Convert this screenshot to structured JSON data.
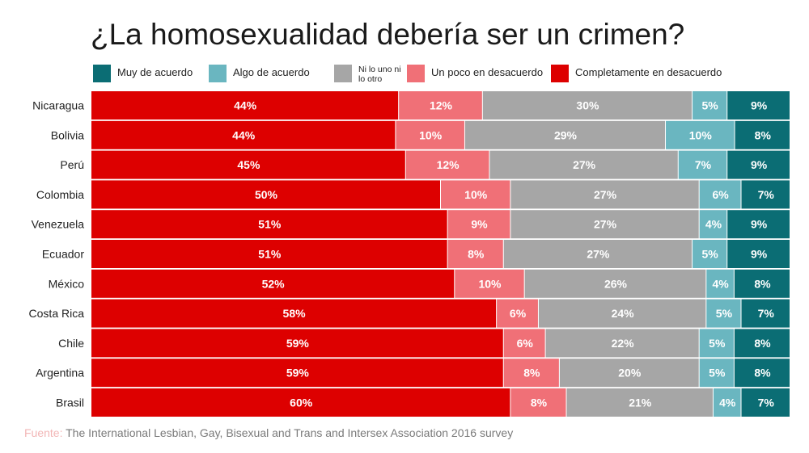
{
  "title": "¿La homosexualidad debería ser un crimen?",
  "source": {
    "label": "Fuente:",
    "text": " The International Lesbian, Gay, Bisexual and Trans and Intersex Association 2016 survey"
  },
  "colors": {
    "completamente": "#dd0000",
    "un_poco": "#f07077",
    "neutral": "#a6a6a6",
    "algo": "#6ab6c0",
    "muy": "#0b6d74"
  },
  "legend": [
    {
      "label": "Muy de acuerdo",
      "color": "#0b6d74"
    },
    {
      "label": "Algo de acuerdo",
      "color": "#6ab6c0"
    },
    {
      "label": "Ni lo uno ni lo otro",
      "color": "#a6a6a6"
    },
    {
      "label": "Un poco en desacuerdo",
      "color": "#f07077"
    },
    {
      "label": "Completamente en desacuerdo",
      "color": "#dd0000"
    }
  ],
  "chart_data": {
    "type": "bar",
    "orientation": "horizontal",
    "stacked": true,
    "title": "¿La homosexualidad debería ser un crimen?",
    "categories": [
      "Nicaragua",
      "Bolivia",
      "Perú",
      "Colombia",
      "Venezuela",
      "Ecuador",
      "México",
      "Costa Rica",
      "Chile",
      "Argentina",
      "Brasil"
    ],
    "series": [
      {
        "name": "Completamente en desacuerdo",
        "color": "#dd0000",
        "values": [
          44,
          44,
          45,
          50,
          51,
          51,
          52,
          58,
          59,
          59,
          60
        ]
      },
      {
        "name": "Un poco en desacuerdo",
        "color": "#f07077",
        "values": [
          12,
          10,
          12,
          10,
          9,
          8,
          10,
          6,
          6,
          8,
          8
        ]
      },
      {
        "name": "Ni lo uno ni lo otro",
        "color": "#a6a6a6",
        "values": [
          30,
          29,
          27,
          27,
          27,
          27,
          26,
          24,
          22,
          20,
          21
        ]
      },
      {
        "name": "Algo de acuerdo",
        "color": "#6ab6c0",
        "values": [
          5,
          10,
          7,
          6,
          4,
          5,
          4,
          5,
          5,
          5,
          4
        ]
      },
      {
        "name": "Muy de acuerdo",
        "color": "#0b6d74",
        "values": [
          9,
          8,
          9,
          7,
          9,
          9,
          8,
          7,
          8,
          8,
          7
        ]
      }
    ],
    "value_suffix": "%",
    "legend_position": "top",
    "grid": false
  }
}
